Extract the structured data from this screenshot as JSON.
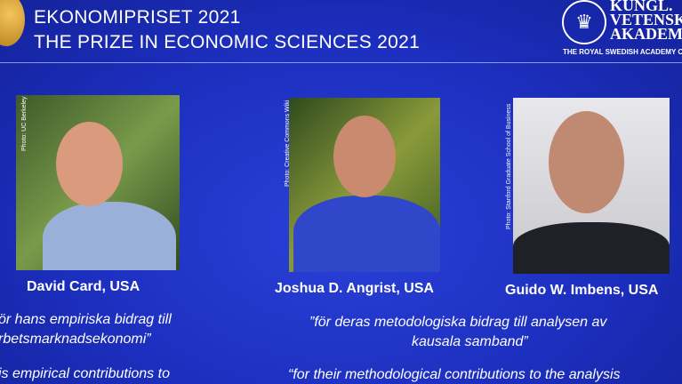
{
  "header": {
    "title_sv": "EKONOMIPRISET 2021",
    "title_en": "THE PRIZE IN ECONOMIC SCIENCES 2021",
    "academy_lines": [
      "KUNGL.",
      "VETENSK",
      "AKADEM"
    ],
    "academy_en": "THE ROYAL SWEDISH ACADEMY OF S"
  },
  "laureates": [
    {
      "name": "David Card, USA",
      "credit": "Photo: UC Berkeley"
    },
    {
      "name": "Joshua D. Angrist, USA",
      "credit": "Photo: Creative Commons Wiki"
    },
    {
      "name": "Guido W. Imbens, USA",
      "credit": "Photo: Stanford Graduate School of Business"
    }
  ],
  "motivations": {
    "card_sv_1": "ör hans empiriska bidrag till",
    "card_sv_2": "rbetsmarknadsekonomi”",
    "card_en_1": "is empirical contributions to",
    "ai_sv_1": "”för deras metodologiska bidrag till analysen av",
    "ai_sv_2": "kausala samband”",
    "ai_en_1": "“for their methodological contributions to the analysis"
  },
  "colors": {
    "background": "#1c2fbf"
  }
}
